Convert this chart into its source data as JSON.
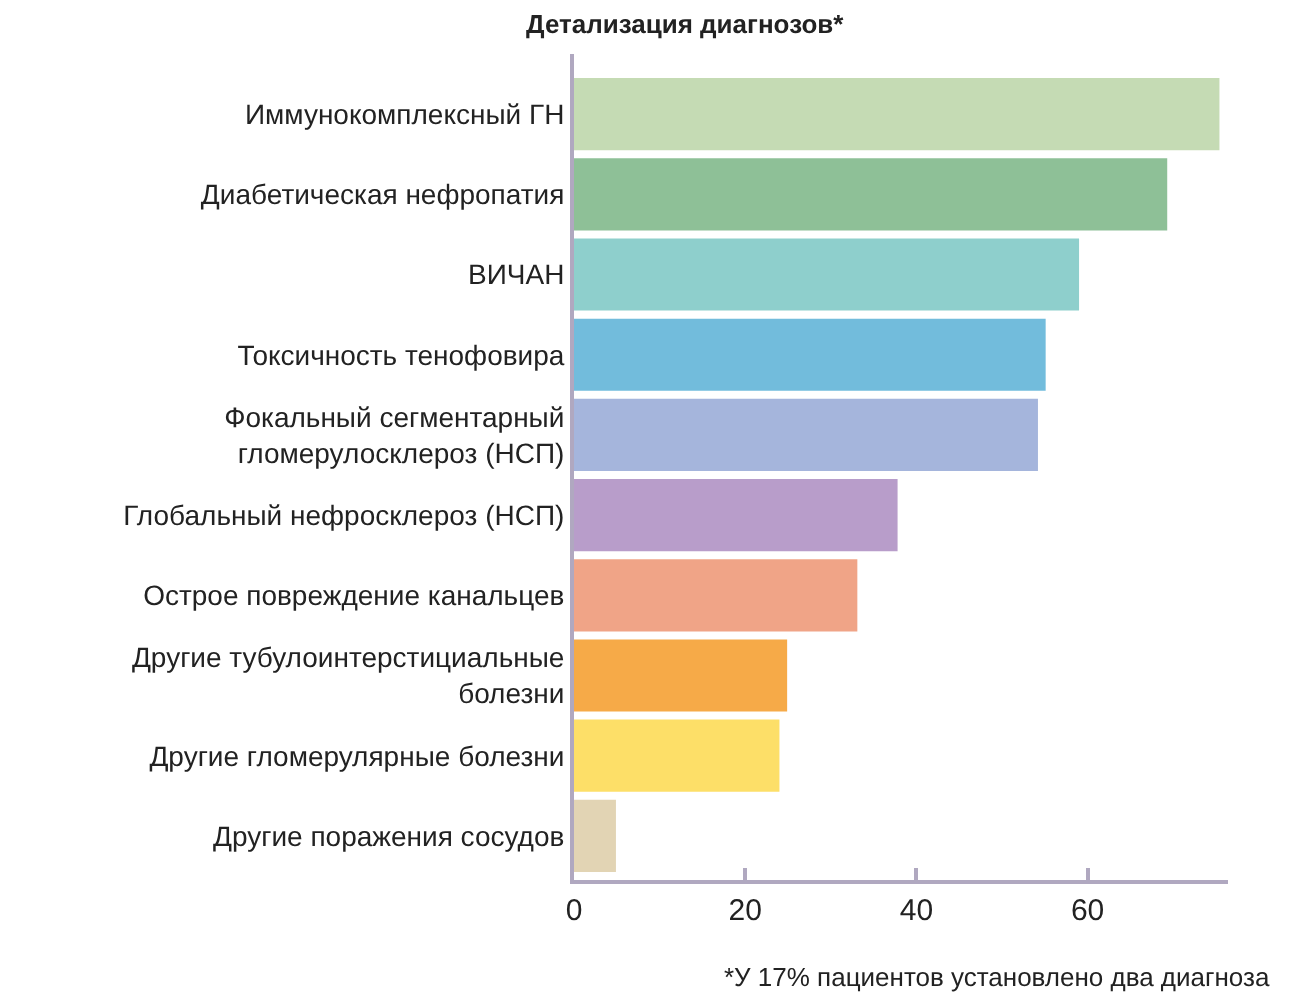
{
  "chart_data": {
    "type": "bar",
    "orientation": "horizontal",
    "title": "Детализация диагнозов*",
    "categories": [
      "Иммунокомплексный ГН",
      "Диабетическая нефропатия",
      "ВИЧАН",
      "Токсичность тенофовира",
      "Фокальный сегментарный\nгломерулосклероз (НСП)",
      "Глобальный нефросклероз (НСП)",
      "Острое повреждение канальцев",
      "Другие тубулоинтерстициальные\nболезни",
      "Другие гломерулярные болезни",
      "Другие поражения сосудов"
    ],
    "values": [
      75.4,
      69.3,
      59.0,
      55.1,
      54.2,
      37.8,
      33.1,
      24.9,
      24.0,
      4.9
    ],
    "colors": [
      "#c5dbb4",
      "#8ec097",
      "#8ecfcc",
      "#72bcdc",
      "#a5b5dc",
      "#b89dca",
      "#f0a487",
      "#f6aa48",
      "#fddf68",
      "#e2d4b4"
    ],
    "xlim": [
      0,
      76.4
    ],
    "xticks": [
      0,
      20,
      40,
      60
    ],
    "annotations": [
      "*У 17% пациентов установлено два диагноза"
    ]
  }
}
